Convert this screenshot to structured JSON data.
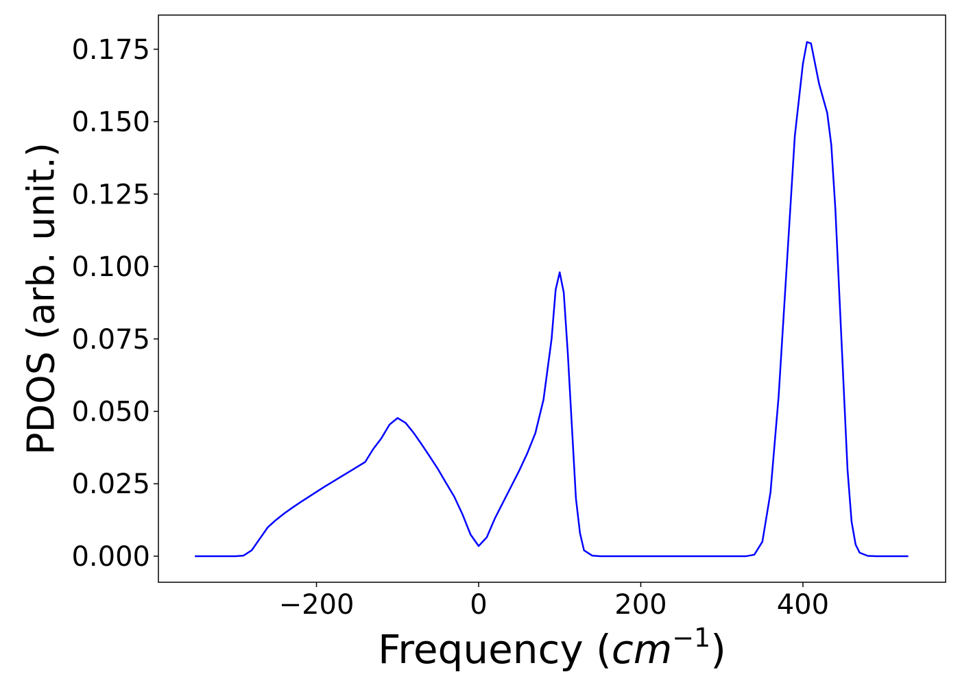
{
  "chart_data": {
    "type": "line",
    "xlabel": {
      "text": "Frequency (",
      "math": "cm",
      "sup": "−1",
      "end": ")"
    },
    "ylabel": "PDOS (arb. unit.)",
    "x": [
      -350,
      -340,
      -330,
      -320,
      -310,
      -300,
      -290,
      -280,
      -270,
      -260,
      -250,
      -240,
      -230,
      -220,
      -210,
      -200,
      -190,
      -180,
      -170,
      -160,
      -150,
      -140,
      -130,
      -120,
      -110,
      -100,
      -90,
      -80,
      -70,
      -60,
      -50,
      -40,
      -30,
      -20,
      -10,
      0,
      10,
      20,
      30,
      40,
      50,
      60,
      70,
      80,
      90,
      95,
      100,
      105,
      110,
      115,
      120,
      125,
      130,
      140,
      150,
      200,
      250,
      300,
      330,
      340,
      350,
      360,
      370,
      380,
      390,
      400,
      405,
      410,
      420,
      430,
      435,
      440,
      450,
      455,
      460,
      465,
      470,
      480,
      490,
      530
    ],
    "values": [
      0,
      0,
      0,
      0,
      0,
      0,
      0.0002,
      0.002,
      0.006,
      0.01,
      0.0125,
      0.0147,
      0.0167,
      0.0186,
      0.0204,
      0.0222,
      0.024,
      0.0257,
      0.0274,
      0.0291,
      0.0308,
      0.0325,
      0.037,
      0.0407,
      0.0454,
      0.0477,
      0.046,
      0.0425,
      0.0385,
      0.0343,
      0.03,
      0.0252,
      0.0205,
      0.0145,
      0.0075,
      0.0035,
      0.0065,
      0.013,
      0.0185,
      0.024,
      0.0295,
      0.0355,
      0.0425,
      0.054,
      0.075,
      0.092,
      0.098,
      0.091,
      0.07,
      0.045,
      0.02,
      0.008,
      0.002,
      0.0002,
      0,
      0,
      0,
      0,
      0,
      0.0005,
      0.005,
      0.022,
      0.055,
      0.1,
      0.145,
      0.17,
      0.1775,
      0.177,
      0.163,
      0.153,
      0.142,
      0.12,
      0.06,
      0.03,
      0.012,
      0.004,
      0.0012,
      0.0001,
      0,
      0
    ],
    "color": "#0000ff",
    "xlim": [
      -395,
      576
    ],
    "ylim": [
      -0.009,
      0.1868
    ],
    "xticks": [
      {
        "value": -200,
        "label": "−200"
      },
      0,
      200,
      400
    ],
    "yticks": [
      {
        "value": 0,
        "label": "0.000"
      },
      0.025,
      {
        "value": 0.05,
        "label": "0.050"
      },
      0.075,
      {
        "value": 0.1,
        "label": "0.100"
      },
      0.125,
      {
        "value": 0.15,
        "label": "0.150"
      },
      0.175
    ]
  }
}
